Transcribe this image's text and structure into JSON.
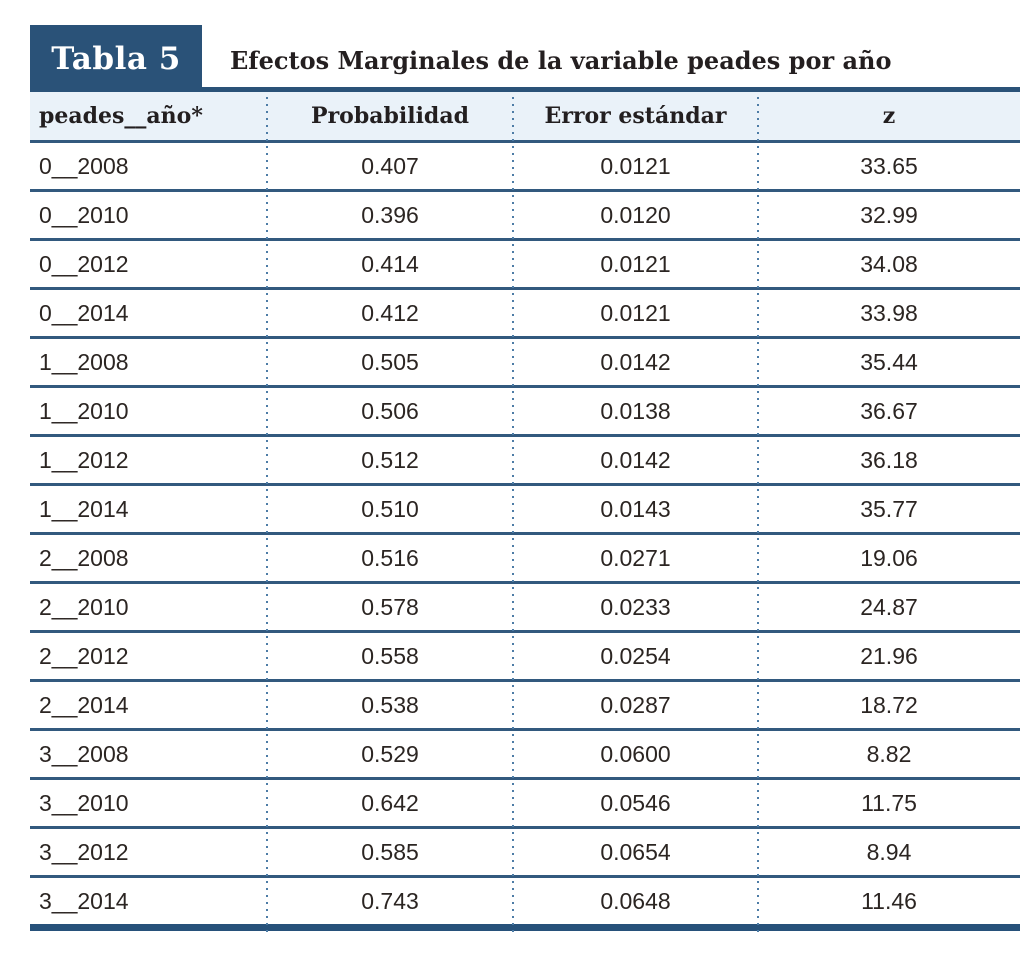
{
  "badge": {
    "label": "Tabla 5"
  },
  "header": {
    "title": "Efectos Marginales de la variable peades por año"
  },
  "table": {
    "columns": {
      "c1": "peades__año*",
      "c2": "Probabilidad",
      "c3": "Error estándar",
      "c4": "z"
    },
    "rows": [
      {
        "peades_ano": "0__2008",
        "probabilidad": "0.407",
        "error_estandar": "0.0121",
        "z": "33.65"
      },
      {
        "peades_ano": "0__2010",
        "probabilidad": "0.396",
        "error_estandar": "0.0120",
        "z": "32.99"
      },
      {
        "peades_ano": "0__2012",
        "probabilidad": "0.414",
        "error_estandar": "0.0121",
        "z": "34.08"
      },
      {
        "peades_ano": "0__2014",
        "probabilidad": "0.412",
        "error_estandar": "0.0121",
        "z": "33.98"
      },
      {
        "peades_ano": "1__2008",
        "probabilidad": "0.505",
        "error_estandar": "0.0142",
        "z": "35.44"
      },
      {
        "peades_ano": "1__2010",
        "probabilidad": "0.506",
        "error_estandar": "0.0138",
        "z": "36.67"
      },
      {
        "peades_ano": "1__2012",
        "probabilidad": "0.512",
        "error_estandar": "0.0142",
        "z": "36.18"
      },
      {
        "peades_ano": "1__2014",
        "probabilidad": "0.510",
        "error_estandar": "0.0143",
        "z": "35.77"
      },
      {
        "peades_ano": "2__2008",
        "probabilidad": "0.516",
        "error_estandar": "0.0271",
        "z": "19.06"
      },
      {
        "peades_ano": "2__2010",
        "probabilidad": "0.578",
        "error_estandar": "0.0233",
        "z": "24.87"
      },
      {
        "peades_ano": "2__2012",
        "probabilidad": "0.558",
        "error_estandar": "0.0254",
        "z": "21.96"
      },
      {
        "peades_ano": "2__2014",
        "probabilidad": "0.538",
        "error_estandar": "0.0287",
        "z": "18.72"
      },
      {
        "peades_ano": "3__2008",
        "probabilidad": "0.529",
        "error_estandar": "0.0600",
        "z": "8.82"
      },
      {
        "peades_ano": "3__2010",
        "probabilidad": "0.642",
        "error_estandar": "0.0546",
        "z": "11.75"
      },
      {
        "peades_ano": "3__2012",
        "probabilidad": "0.585",
        "error_estandar": "0.0654",
        "z": "8.94"
      },
      {
        "peades_ano": "3__2014",
        "probabilidad": "0.743",
        "error_estandar": "0.0648",
        "z": "11.46"
      }
    ]
  },
  "colors": {
    "navy": "#2a5278",
    "header_bg": "#eaf2f9",
    "row_line": "#32597e",
    "dotted_line": "#4d7ca6",
    "text": "#2b2522"
  }
}
